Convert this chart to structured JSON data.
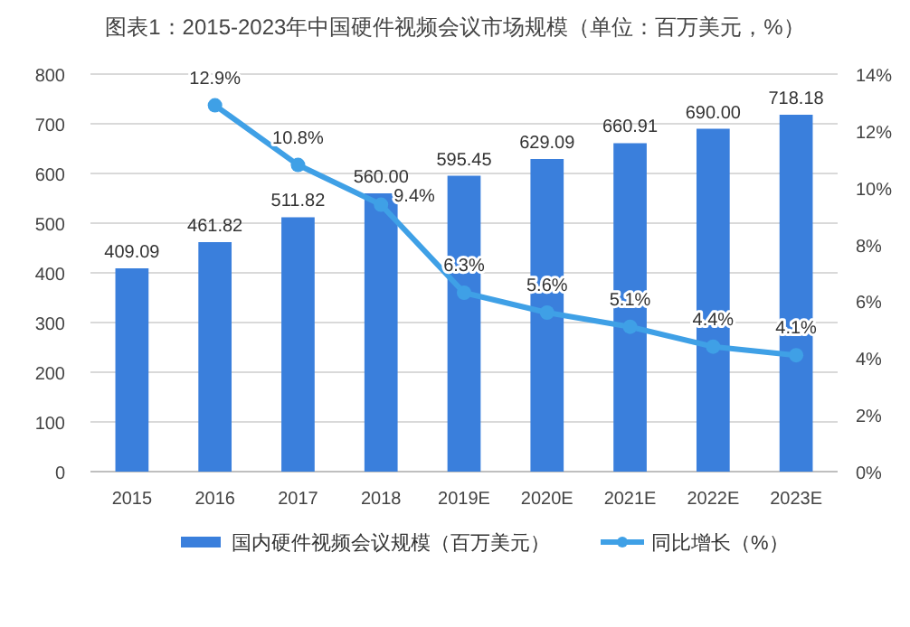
{
  "chart_data": {
    "type": "bar",
    "title": "图表1：2015-2023年中国硬件视频会议市场规模（单位：百万美元，%）",
    "categories": [
      "2015",
      "2016",
      "2017",
      "2018",
      "2019E",
      "2020E",
      "2021E",
      "2022E",
      "2023E"
    ],
    "series": [
      {
        "name": "国内硬件视频会议规模（百万美元）",
        "type": "bar",
        "color": "#3a7fdc",
        "values": [
          409.09,
          461.82,
          511.82,
          560.0,
          595.45,
          629.09,
          660.91,
          690.0,
          718.18
        ],
        "value_labels": [
          "409.09",
          "461.82",
          "511.82",
          "560.00",
          "595.45",
          "629.09",
          "660.91",
          "690.00",
          "718.18"
        ]
      },
      {
        "name": "同比增长（%）",
        "type": "line",
        "axis": "y2",
        "color": "#3fa0e6",
        "marker": "circle",
        "values": [
          null,
          12.9,
          10.8,
          9.4,
          6.3,
          5.6,
          5.1,
          4.4,
          4.1
        ],
        "value_labels": [
          null,
          "12.9%",
          "10.8%",
          "9.4%",
          "6.3%",
          "5.6%",
          "5.1%",
          "4.4%",
          "4.1%"
        ]
      }
    ],
    "ylim": [
      0,
      800
    ],
    "yticks": [
      0,
      100,
      200,
      300,
      400,
      500,
      600,
      700,
      800
    ],
    "y2lim": [
      0,
      14
    ],
    "y2ticks": [
      {
        "value": 0,
        "label": "0%"
      },
      {
        "value": 2,
        "label": "2%"
      },
      {
        "value": 4,
        "label": "4%"
      },
      {
        "value": 6,
        "label": "6%"
      },
      {
        "value": 8,
        "label": "8%"
      },
      {
        "value": 10,
        "label": "10%"
      },
      {
        "value": 12,
        "label": "12%"
      },
      {
        "value": 14,
        "label": "14%"
      }
    ],
    "grid": "y",
    "legend": "bottom"
  }
}
